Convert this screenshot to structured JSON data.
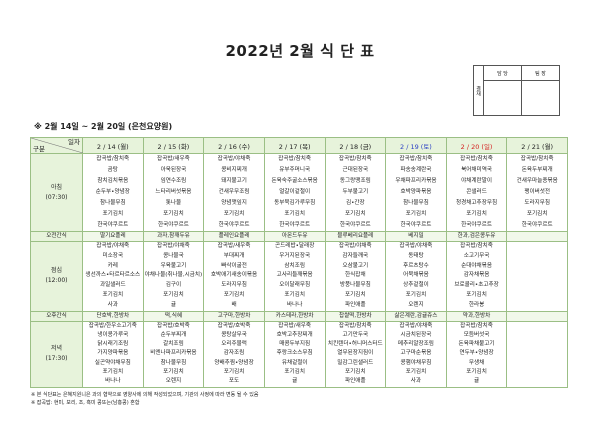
{
  "title": "2022년 2월 식 단 표",
  "approval": {
    "label": "결재",
    "cols": [
      "담 당",
      "팀 장"
    ]
  },
  "subtitle": "※ 2월 14일 ~ 2월 20일 (은천요양원)",
  "corner": {
    "top": "일자",
    "bottom": "구분"
  },
  "colors": {
    "header_bg": "#e7f3db",
    "border": "#9bbf85",
    "saturday": "#2a3fc4",
    "sunday": "#d42020"
  },
  "days": [
    {
      "label": "2 / 14 (월)",
      "color": ""
    },
    {
      "label": "2 / 15 (화)",
      "color": ""
    },
    {
      "label": "2 / 16 (수)",
      "color": ""
    },
    {
      "label": "2 / 17 (목)",
      "color": ""
    },
    {
      "label": "2 / 18 (금)",
      "color": ""
    },
    {
      "label": "2 / 19 (토)",
      "color": "blue"
    },
    {
      "label": "2 / 20 (일)",
      "color": "red"
    },
    {
      "label": "2 / 21 (월)",
      "color": ""
    }
  ],
  "rows": [
    {
      "label": "아침",
      "time": "(07:30)",
      "type": "meal",
      "cells": [
        [
          "잡곡밥/참치죽",
          "곰탕",
          "참치김치볶음",
          "순두부•양념장",
          "참나물무침",
          "포기김치",
          "한국야쿠르트"
        ],
        [
          "잡곡밥/새우죽",
          "아욱된장국",
          "임연수조림",
          "느타리버섯볶음",
          "톳나물",
          "포기김치",
          "한국야쿠르트"
        ],
        [
          "잡곡밥/야채죽",
          "콩비지찌개",
          "돼지불고기",
          "건새우무조림",
          "양념깻잎지",
          "포기김치",
          "한국야쿠르트"
        ],
        [
          "잡곡밥/참치죽",
          "유부주머니국",
          "돈육숙주굴소스볶음",
          "얼갈이겉절이",
          "동부묵김가루무침",
          "포기김치",
          "한국야쿠르트"
        ],
        [
          "잡곡밥/참치죽",
          "근대된장국",
          "동그랑땡조림",
          "두부불고기",
          "김•간장",
          "포기김치",
          "한국야쿠르트"
        ],
        [
          "잡곡밥/참치죽",
          "파송송계란국",
          "우채파프리카볶음",
          "호박양파볶음",
          "참나물무침",
          "포기김치",
          "한국야쿠르트"
        ],
        [
          "잡곡밥/참치죽",
          "북어채미역국",
          "야채계란말이",
          "콘샐러드",
          "청경채고추장무침",
          "포기김치",
          "한국야쿠르트"
        ],
        [
          "잡곡밥/참치죽",
          "돈육두부찌개",
          "건새우마늘종볶음",
          "팽이버섯전",
          "도라지무침",
          "포기김치",
          "한국야쿠르트"
        ]
      ]
    },
    {
      "label": "오전간식",
      "time": "",
      "type": "snack",
      "cells": [
        [
          "딸기요플레"
        ],
        [
          "과자,참깨두유"
        ],
        [
          "플레인요플레"
        ],
        [
          "아몬드두유"
        ],
        [
          "블루베리요플레"
        ],
        [
          "베지밀"
        ],
        [
          "한과,검은콩두유"
        ],
        []
      ]
    },
    {
      "label": "점심",
      "time": "(12:00)",
      "type": "meal",
      "cells": [
        [
          "잡곡밥/야채죽",
          "미소장국",
          "카레",
          "생선까스•타르타르소스",
          "과일샐러드",
          "포기김치",
          "사과"
        ],
        [
          "잡곡밥/야채죽",
          "콩나물국",
          "우육불고기",
          "야채나물(취나물,시금치)",
          "김구이",
          "포기김치",
          "귤"
        ],
        [
          "잡곡밥/새우죽",
          "부대찌개",
          "빠삭이굴전",
          "호박애기새송이볶음",
          "도라지무침",
          "포기김치",
          "배"
        ],
        [
          "곤드레밥•달래장",
          "우거지된장국",
          "삼치조림",
          "고사리들깨볶음",
          "오이달래무침",
          "포기김치",
          "바나나"
        ],
        [
          "잡곡밥/야채죽",
          "감자들깨국",
          "오삼불고기",
          "한식잡채",
          "방풍나물무침",
          "포기김치",
          "파인애플"
        ],
        [
          "잡곡밥/야채죽",
          "동태탕",
          "후르츠탕수",
          "어묵채볶음",
          "상추겉절이",
          "포기김치",
          "오렌지"
        ],
        [
          "잡곡밥/참치죽",
          "소고기무국",
          "순대야채볶음",
          "감자채볶음",
          "브로콜리•초고추장",
          "포기김치",
          "한라봉"
        ],
        []
      ]
    },
    {
      "label": "오후간식",
      "time": "",
      "type": "snack",
      "cells": [
        [
          "단호박,한방차"
        ],
        [
          "떡,식혜"
        ],
        [
          "고구마,한방차"
        ],
        [
          "카스테라,한방차"
        ],
        [
          "찹쌀떡,한방차"
        ],
        [
          "삶은계란,감귤쥬스"
        ],
        [
          "약과,한방차"
        ],
        []
      ]
    },
    {
      "label": "저녁",
      "time": "(17:30)",
      "type": "meal",
      "cells": [
        [
          "잡곡밥/한우소고기죽",
          "냉이콩가루국",
          "닭시래기조림",
          "가지양파볶음",
          "실곤약야채무침",
          "포기김치",
          "바나나"
        ],
        [
          "잡곡밥/호박죽",
          "순두부찌개",
          "갈치조림",
          "비엔나파프리카볶음",
          "참나물무침",
          "포기김치",
          "오렌지"
        ],
        [
          "잡곡밥/호박죽",
          "콩탕살무국",
          "오리주물럭",
          "감자조림",
          "양배추찜•양념장",
          "포기김치",
          "포도"
        ],
        [
          "잡곡밥/새우죽",
          "호박고추장찌개",
          "매콤두부지짐",
          "후랑크소스무침",
          "유채겉절이",
          "포기김치",
          "귤"
        ],
        [
          "잡곡밥/참치죽",
          "고기만두국",
          "치킨텐더•허니머스터드",
          "열무된장지짐이",
          "밀감그린샐러드",
          "포기김치",
          "파인애플"
        ],
        [
          "잡곡밥/야채죽",
          "시금치된장국",
          "메추리알장조림",
          "고구마순볶음",
          "콩햄야채무침",
          "포기김치",
          "사과"
        ],
        [
          "잡곡밥/참치죽",
          "모듬버섯국",
          "돈육파채불고기",
          "연두부•양념장",
          "무생채",
          "포기김치",
          "귤"
        ],
        []
      ]
    }
  ],
  "notes": [
    "※ 본 식단표는 은혜지원니은 과의 협약으로 영양사에 의해 작성되었으며, 기관의 사정에 따라 변동 될 수 있음",
    "※ 잡곡밥: 현미, 보리, 조, 흑미 콩또는(남흥콩) 혼합"
  ]
}
